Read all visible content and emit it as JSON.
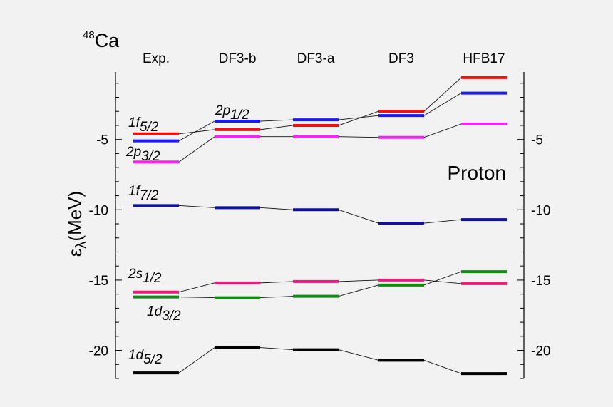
{
  "nucleus": {
    "mass": "48",
    "symbol": "Ca"
  },
  "chart_data": {
    "type": "line",
    "title": "",
    "ylabel_greek": "ε",
    "ylabel_sub": "λ",
    "ylabel_unit": "(MeV)",
    "annotation": "Proton",
    "ylim": [
      -22,
      -0.2
    ],
    "yticks": [
      -5,
      -10,
      -15,
      -20
    ],
    "grid": false,
    "categories": [
      "Exp.",
      "DF3-b",
      "DF3-a",
      "DF3",
      "HFB17"
    ],
    "series": [
      {
        "name": "1f",
        "sub": "5/2",
        "color": "#ee1111",
        "values": [
          -4.6,
          -4.3,
          -4.0,
          -3.0,
          -0.6
        ]
      },
      {
        "name": "2p",
        "sub": "3/2",
        "color": "#f425f4",
        "values": [
          -6.6,
          -4.8,
          -4.8,
          -4.85,
          -3.9
        ]
      },
      {
        "name": "2p",
        "sub": "1/2",
        "color": "#1a1aee",
        "values": [
          -5.1,
          -3.7,
          -3.6,
          -3.3,
          -1.7
        ]
      },
      {
        "name": "1f",
        "sub": "7/2",
        "color": "#10109a",
        "values": [
          -9.7,
          -9.85,
          -10.0,
          -10.95,
          -10.7
        ]
      },
      {
        "name": "2s",
        "sub": "1/2",
        "color": "#ee1a78",
        "values": [
          -15.85,
          -15.2,
          -15.1,
          -15.0,
          -15.25
        ]
      },
      {
        "name": "1d",
        "sub": "3/2",
        "color": "#138a13",
        "values": [
          -16.2,
          -16.25,
          -16.15,
          -15.35,
          -14.4
        ]
      },
      {
        "name": "1d",
        "sub": "5/2",
        "color": "#000000",
        "values": [
          -21.6,
          -19.8,
          -19.95,
          -20.7,
          -21.65
        ]
      }
    ]
  }
}
